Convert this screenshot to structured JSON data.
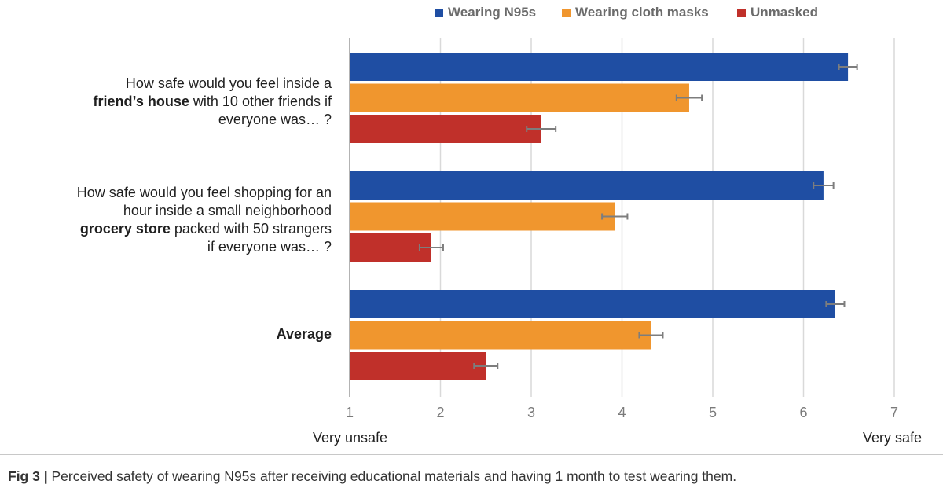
{
  "chart_data": {
    "type": "bar",
    "orientation": "horizontal",
    "categories": [
      {
        "parts": [
          {
            "text": "How safe would you feel inside a ",
            "bold": false
          },
          {
            "text": "friend’s house",
            "bold": true
          },
          {
            "text": " with 10 other friends if everyone was… ?",
            "bold": false
          }
        ]
      },
      {
        "parts": [
          {
            "text": "How safe would you feel shopping for an hour inside a small neighborhood ",
            "bold": false
          },
          {
            "text": "grocery store",
            "bold": true
          },
          {
            "text": " packed with 50 strangers if everyone was… ?",
            "bold": false
          }
        ]
      },
      {
        "parts": [
          {
            "text": "Average",
            "bold": true
          }
        ]
      }
    ],
    "series": [
      {
        "name": "Wearing N95s",
        "color": "#1f4ea3",
        "values": [
          6.49,
          6.22,
          6.35
        ],
        "errors": [
          0.1,
          0.11,
          0.1
        ]
      },
      {
        "name": "Wearing cloth masks",
        "color": "#f0962e",
        "values": [
          4.74,
          3.92,
          4.32
        ],
        "errors": [
          0.14,
          0.14,
          0.13
        ]
      },
      {
        "name": "Unmasked",
        "color": "#c0302a",
        "values": [
          3.11,
          1.9,
          2.5
        ],
        "errors": [
          0.16,
          0.13,
          0.13
        ]
      }
    ],
    "xlim": [
      1,
      7
    ],
    "xticks": [
      1,
      2,
      3,
      4,
      5,
      6,
      7
    ],
    "xlabel_left": "Very unsafe",
    "xlabel_right": "Very safe",
    "grid": true,
    "legend_position": "top"
  },
  "caption": {
    "prefix": "Fig 3 |",
    "text": " Perceived safety of wearing N95s after receiving educational materials and having 1 month to test wearing them."
  }
}
